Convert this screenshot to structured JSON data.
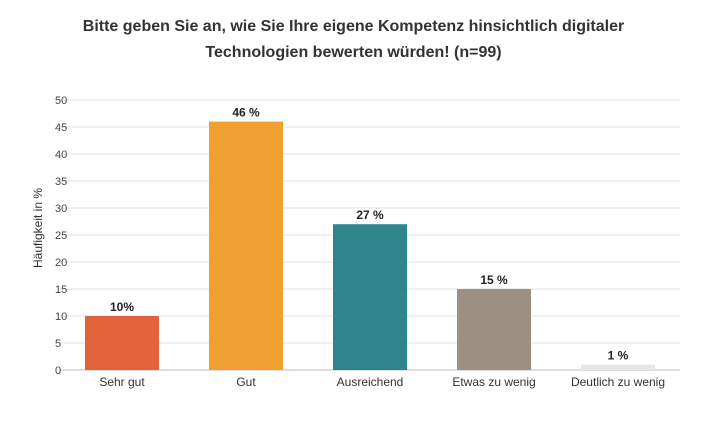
{
  "chart_data": {
    "type": "bar",
    "title_line1": "Bitte geben Sie an, wie Sie Ihre eigene Kompetenz hinsichtlich digitaler",
    "title_line2": "Technologien bewerten würden! (n=99)",
    "xlabel": "",
    "ylabel": "Häufigkeit in %",
    "ylim": [
      0,
      50
    ],
    "yticks": [
      0,
      5,
      10,
      15,
      20,
      25,
      30,
      35,
      40,
      45,
      50
    ],
    "grid": true,
    "categories": [
      "Sehr gut",
      "Gut",
      "Ausreichend",
      "Etwas zu wenig",
      "Deutlich zu wenig"
    ],
    "values": [
      10,
      46,
      27,
      15,
      1
    ],
    "data_labels": [
      "10%",
      "46 %",
      "27 %",
      "15 %",
      "1 %"
    ],
    "colors": [
      "#e2633a",
      "#f0a030",
      "#2e868c",
      "#9e9080",
      "#e6e6e6"
    ]
  }
}
